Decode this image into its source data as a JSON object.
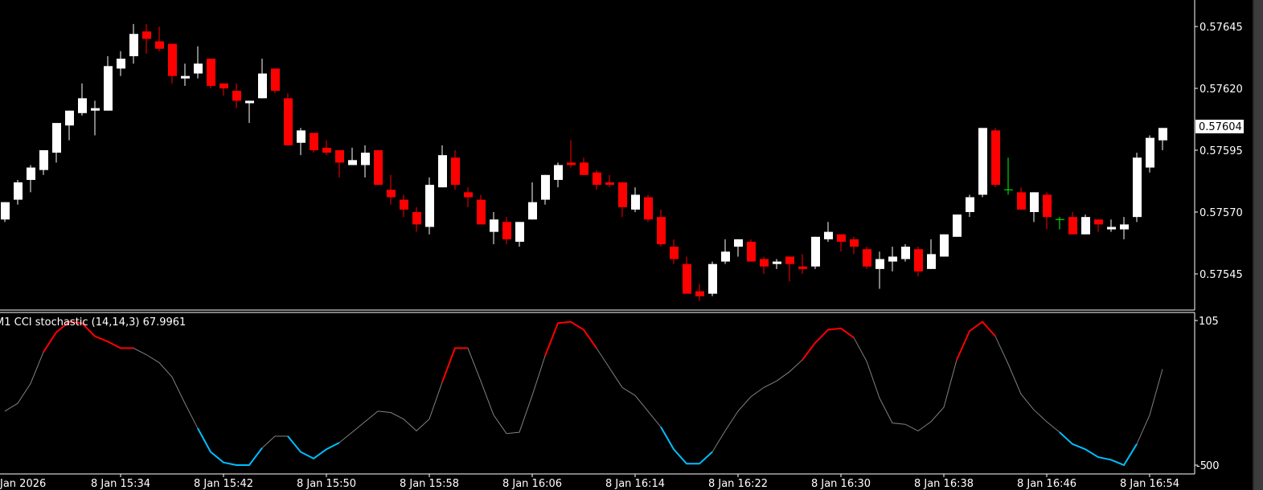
{
  "chart_data": {
    "type": "candlestick",
    "timeframe": "M1",
    "colors": {
      "bull": "#ffffff",
      "bear": "#ff0000",
      "doji": "#00ff00",
      "background": "#000000",
      "axis": "#ffffff"
    },
    "price_axis": {
      "ticks": [
        "0.57645",
        "0.57620",
        "0.57595",
        "0.57570",
        "0.57545"
      ],
      "current_price": "0.57604"
    },
    "time_axis": {
      "labels": [
        "Jan 2026",
        "8 Jan 15:34",
        "8 Jan 15:42",
        "8 Jan 15:50",
        "8 Jan 15:58",
        "8 Jan 16:06",
        "8 Jan 16:14",
        "8 Jan 16:22",
        "8 Jan 16:30",
        "8 Jan 16:38",
        "8 Jan 16:46",
        "8 Jan 16:54"
      ]
    },
    "candles_ohlc": [
      [
        0.57567,
        0.57574,
        0.57566,
        0.57574
      ],
      [
        0.57575,
        0.57583,
        0.57573,
        0.57582
      ],
      [
        0.57583,
        0.57589,
        0.57578,
        0.57588
      ],
      [
        0.57587,
        0.57595,
        0.57585,
        0.57595
      ],
      [
        0.57594,
        0.57606,
        0.5759,
        0.57606
      ],
      [
        0.57605,
        0.57611,
        0.57599,
        0.57611
      ],
      [
        0.5761,
        0.57622,
        0.57609,
        0.57616
      ],
      [
        0.57611,
        0.57615,
        0.57601,
        0.57612
      ],
      [
        0.57611,
        0.57633,
        0.57611,
        0.57629
      ],
      [
        0.57628,
        0.57635,
        0.57625,
        0.57632
      ],
      [
        0.57633,
        0.57646,
        0.5763,
        0.57642
      ],
      [
        0.57643,
        0.57646,
        0.57634,
        0.5764
      ],
      [
        0.57639,
        0.57645,
        0.57635,
        0.57636
      ],
      [
        0.57638,
        0.57638,
        0.57622,
        0.57625
      ],
      [
        0.57624,
        0.5763,
        0.57621,
        0.57625
      ],
      [
        0.57626,
        0.57637,
        0.57624,
        0.5763
      ],
      [
        0.57632,
        0.57632,
        0.5762,
        0.57621
      ],
      [
        0.57622,
        0.57622,
        0.57617,
        0.5762
      ],
      [
        0.57619,
        0.57622,
        0.57612,
        0.57615
      ],
      [
        0.57614,
        0.57615,
        0.57606,
        0.57615
      ],
      [
        0.57616,
        0.57632,
        0.57616,
        0.57626
      ],
      [
        0.57628,
        0.57628,
        0.57618,
        0.57619
      ],
      [
        0.57616,
        0.57618,
        0.57597,
        0.57597
      ],
      [
        0.57598,
        0.57604,
        0.57593,
        0.57603
      ],
      [
        0.57602,
        0.57602,
        0.57594,
        0.57595
      ],
      [
        0.57596,
        0.57599,
        0.57593,
        0.57594
      ],
      [
        0.57595,
        0.57595,
        0.57584,
        0.5759
      ],
      [
        0.57589,
        0.57596,
        0.57589,
        0.57591
      ],
      [
        0.57589,
        0.57597,
        0.57584,
        0.57594
      ],
      [
        0.57595,
        0.57595,
        0.57581,
        0.57581
      ],
      [
        0.57579,
        0.57585,
        0.57573,
        0.57576
      ],
      [
        0.57575,
        0.57577,
        0.57568,
        0.57571
      ],
      [
        0.5757,
        0.57572,
        0.57562,
        0.57565
      ],
      [
        0.57564,
        0.57584,
        0.57561,
        0.57581
      ],
      [
        0.5758,
        0.57597,
        0.5758,
        0.57593
      ],
      [
        0.57592,
        0.57595,
        0.57579,
        0.57581
      ],
      [
        0.57578,
        0.5758,
        0.57572,
        0.57576
      ],
      [
        0.57575,
        0.57577,
        0.57565,
        0.57565
      ],
      [
        0.57562,
        0.5757,
        0.57557,
        0.57567
      ],
      [
        0.57566,
        0.57568,
        0.57557,
        0.57559
      ],
      [
        0.57558,
        0.57566,
        0.57556,
        0.57566
      ],
      [
        0.57567,
        0.57582,
        0.57567,
        0.57574
      ],
      [
        0.57575,
        0.57585,
        0.57573,
        0.57585
      ],
      [
        0.57583,
        0.5759,
        0.5758,
        0.57589
      ],
      [
        0.5759,
        0.57599,
        0.57588,
        0.57589
      ],
      [
        0.5759,
        0.57592,
        0.57585,
        0.57585
      ],
      [
        0.57586,
        0.57587,
        0.57579,
        0.57581
      ],
      [
        0.57582,
        0.57585,
        0.5758,
        0.57581
      ],
      [
        0.57582,
        0.57582,
        0.57568,
        0.57572
      ],
      [
        0.57571,
        0.5758,
        0.5757,
        0.57577
      ],
      [
        0.57576,
        0.57577,
        0.57566,
        0.57567
      ],
      [
        0.57568,
        0.57571,
        0.57556,
        0.57557
      ],
      [
        0.57556,
        0.57559,
        0.57549,
        0.57551
      ],
      [
        0.57549,
        0.57552,
        0.57537,
        0.57537
      ],
      [
        0.57538,
        0.57541,
        0.57534,
        0.57536
      ],
      [
        0.57537,
        0.5755,
        0.57536,
        0.57549
      ],
      [
        0.5755,
        0.57559,
        0.57549,
        0.57554
      ],
      [
        0.57556,
        0.57559,
        0.57552,
        0.57559
      ],
      [
        0.57558,
        0.57559,
        0.5755,
        0.5755
      ],
      [
        0.57551,
        0.57552,
        0.57545,
        0.57548
      ],
      [
        0.57549,
        0.57551,
        0.57547,
        0.5755
      ],
      [
        0.57552,
        0.57552,
        0.57542,
        0.57549
      ],
      [
        0.57548,
        0.57553,
        0.57545,
        0.57547
      ],
      [
        0.57548,
        0.5756,
        0.57547,
        0.5756
      ],
      [
        0.57559,
        0.57566,
        0.57558,
        0.57562
      ],
      [
        0.57561,
        0.57561,
        0.57554,
        0.57558
      ],
      [
        0.57559,
        0.5756,
        0.57553,
        0.57556
      ],
      [
        0.57555,
        0.57556,
        0.57547,
        0.57548
      ],
      [
        0.57547,
        0.57554,
        0.57539,
        0.57551
      ],
      [
        0.5755,
        0.57556,
        0.57546,
        0.57552
      ],
      [
        0.57551,
        0.57557,
        0.5755,
        0.57556
      ],
      [
        0.57555,
        0.57556,
        0.57544,
        0.57546
      ],
      [
        0.57547,
        0.57559,
        0.57547,
        0.57553
      ],
      [
        0.57552,
        0.57561,
        0.57552,
        0.57561
      ],
      [
        0.5756,
        0.57569,
        0.5756,
        0.57569
      ],
      [
        0.5757,
        0.57577,
        0.57568,
        0.57576
      ],
      [
        0.57577,
        0.57604,
        0.57576,
        0.57604
      ],
      [
        0.57603,
        0.57604,
        0.5758,
        0.57581
      ],
      [
        0.57579,
        0.57592,
        0.57577,
        0.57579
      ],
      [
        0.57578,
        0.5758,
        0.57571,
        0.57571
      ],
      [
        0.5757,
        0.57578,
        0.57566,
        0.57578
      ],
      [
        0.57577,
        0.57578,
        0.57563,
        0.57568
      ],
      [
        0.57567,
        0.57568,
        0.57563,
        0.57567
      ],
      [
        0.57568,
        0.5757,
        0.57561,
        0.57561
      ],
      [
        0.57561,
        0.57569,
        0.57561,
        0.57568
      ],
      [
        0.57567,
        0.57567,
        0.57562,
        0.57565
      ],
      [
        0.57563,
        0.57567,
        0.57562,
        0.57564
      ],
      [
        0.57563,
        0.57568,
        0.57559,
        0.57565
      ],
      [
        0.57568,
        0.57594,
        0.57566,
        0.57592
      ],
      [
        0.57588,
        0.57601,
        0.57586,
        0.576
      ],
      [
        0.57599,
        0.57604,
        0.57595,
        0.57604
      ]
    ],
    "indicator": {
      "label": "M1 CCI stochastic (14,14,3) 67.9961",
      "axis_ticks": {
        "top": "105",
        "bottom": "-5",
        "bottom_overlap": "00"
      },
      "range": [
        -5,
        105
      ],
      "colors": {
        "neutral": "#808080",
        "overbought": "#ff0000",
        "oversold": "#00bfff"
      },
      "values": [
        36,
        42,
        57,
        81,
        96,
        104,
        103,
        93,
        89,
        84,
        84,
        79,
        73,
        62,
        42,
        23,
        5,
        -3,
        -5,
        -5,
        8,
        17,
        17,
        5,
        0,
        7,
        12,
        20,
        28,
        36,
        35,
        30,
        21,
        30,
        58,
        84,
        84,
        59,
        33,
        19,
        20,
        48,
        78,
        103,
        104,
        98,
        84,
        69,
        54,
        48,
        36,
        24,
        7,
        -4,
        -4,
        5,
        21,
        36,
        47,
        54,
        59,
        66,
        75,
        88,
        98,
        99,
        92,
        74,
        46,
        27,
        26,
        21,
        28,
        39,
        75,
        97,
        104,
        93,
        72,
        49,
        37,
        28,
        20,
        11,
        7,
        1,
        -1,
        -5,
        11,
        33,
        68
      ],
      "highlight_segments": [
        {
          "from": 3,
          "to": 10,
          "state": "overbought"
        },
        {
          "from": 15,
          "to": 20,
          "state": "oversold"
        },
        {
          "from": 22,
          "to": 26,
          "state": "oversold"
        },
        {
          "from": 34,
          "to": 36,
          "state": "overbought"
        },
        {
          "from": 42,
          "to": 46,
          "state": "overbought"
        },
        {
          "from": 51,
          "to": 55,
          "state": "oversold"
        },
        {
          "from": 62,
          "to": 66,
          "state": "overbought"
        },
        {
          "from": 74,
          "to": 77,
          "state": "overbought"
        },
        {
          "from": 82,
          "to": 88,
          "state": "oversold"
        }
      ]
    }
  }
}
